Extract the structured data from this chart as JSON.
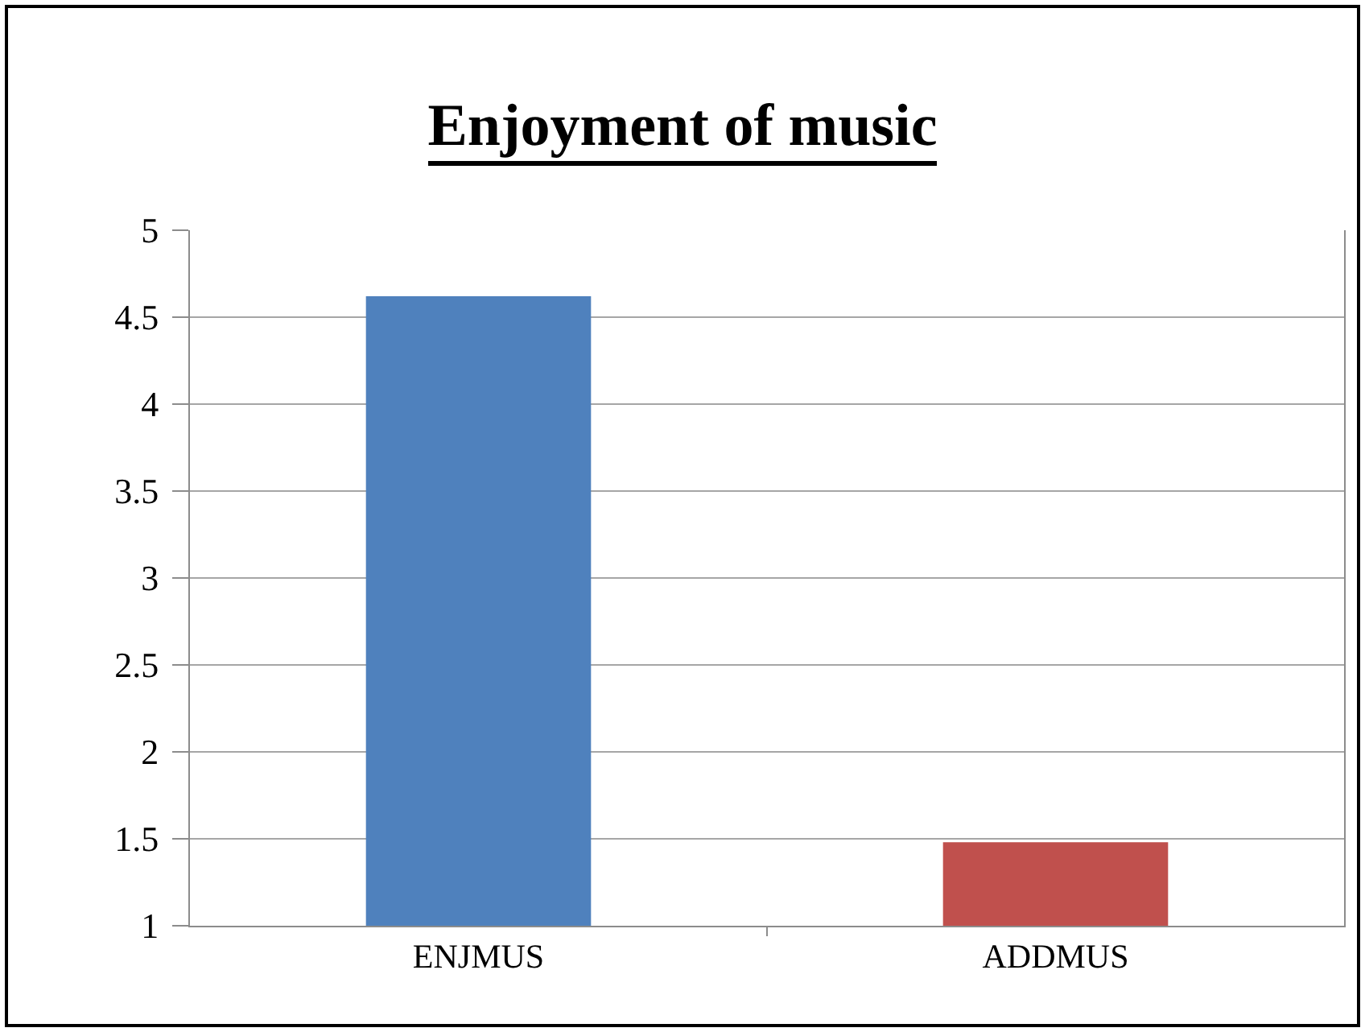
{
  "chart_data": {
    "type": "bar",
    "title": "Enjoyment of music",
    "categories": [
      "ENJMUS",
      "ADDMUS"
    ],
    "values": [
      4.62,
      1.48
    ],
    "colors": [
      "#4f81bd",
      "#c0504d"
    ],
    "ylim": [
      1,
      5
    ],
    "yticks": [
      1,
      1.5,
      2,
      2.5,
      3,
      3.5,
      4,
      4.5,
      5
    ],
    "grid": "y"
  }
}
